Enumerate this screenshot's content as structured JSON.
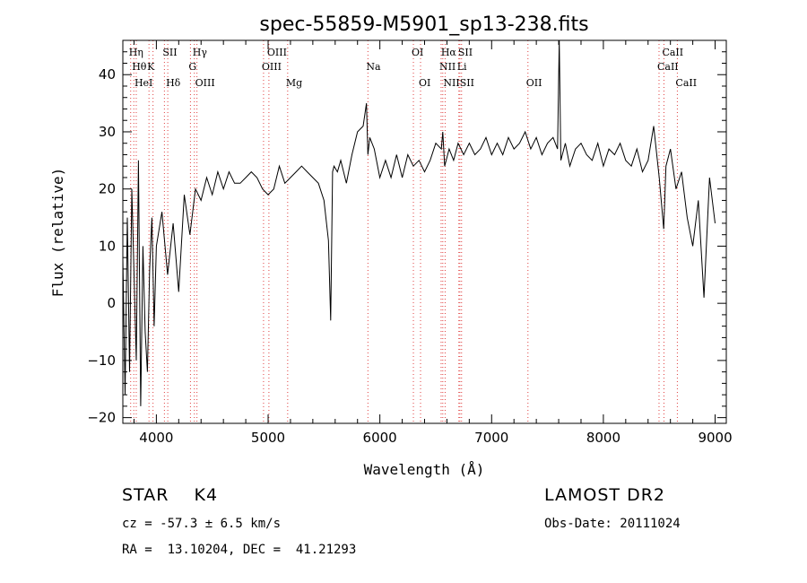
{
  "chart_data": {
    "type": "line",
    "title": "spec-55859-M5901_sp13-238.fits",
    "xlabel": "Wavelength (Å)",
    "ylabel": "Flux (relative)",
    "xlim": [
      3700,
      9100
    ],
    "ylim": [
      -21,
      46
    ],
    "x_ticks": [
      4000,
      5000,
      6000,
      7000,
      8000,
      9000
    ],
    "y_ticks": [
      -20,
      -10,
      0,
      10,
      20,
      30,
      40
    ],
    "grid": false,
    "series": [
      {
        "x": [
          3700,
          3720,
          3740,
          3760,
          3780,
          3800,
          3820,
          3840,
          3860,
          3880,
          3900,
          3920,
          3940,
          3960,
          3980,
          4000,
          4050,
          4100,
          4150,
          4200,
          4250,
          4300,
          4350,
          4400,
          4450,
          4500,
          4550,
          4600,
          4650,
          4700,
          4750,
          4800,
          4850,
          4900,
          4950,
          5000,
          5050,
          5100,
          5150,
          5200,
          5250,
          5300,
          5350,
          5400,
          5450,
          5500,
          5540,
          5560,
          5577,
          5590,
          5620,
          5650,
          5700,
          5750,
          5800,
          5850,
          5880,
          5893,
          5910,
          5950,
          6000,
          6050,
          6100,
          6150,
          6200,
          6250,
          6300,
          6350,
          6400,
          6450,
          6500,
          6550,
          6563,
          6580,
          6620,
          6660,
          6700,
          6750,
          6800,
          6850,
          6900,
          6950,
          7000,
          7050,
          7100,
          7150,
          7200,
          7250,
          7300,
          7350,
          7400,
          7450,
          7500,
          7550,
          7590,
          7605,
          7620,
          7660,
          7700,
          7750,
          7800,
          7850,
          7900,
          7950,
          8000,
          8050,
          8100,
          8150,
          8200,
          8250,
          8300,
          8350,
          8400,
          8450,
          8500,
          8540,
          8560,
          8600,
          8650,
          8700,
          8750,
          8800,
          8850,
          8900,
          8950,
          9000
        ],
        "y": [
          8,
          -16,
          15,
          -12,
          20,
          5,
          -10,
          25,
          -18,
          10,
          -5,
          -12,
          6,
          15,
          -4,
          10,
          16,
          5,
          14,
          2,
          19,
          12,
          20,
          18,
          22,
          19,
          23,
          20,
          23,
          21,
          21,
          22,
          23,
          22,
          20,
          19,
          20,
          24,
          21,
          22,
          23,
          24,
          23,
          22,
          21,
          18,
          11,
          -3,
          23,
          24,
          23,
          25,
          21,
          26,
          30,
          31,
          35,
          26,
          29,
          27,
          22,
          25,
          22,
          26,
          22,
          26,
          24,
          25,
          23,
          25,
          28,
          27,
          30,
          24,
          27,
          25,
          28,
          26,
          28,
          26,
          27,
          29,
          26,
          28,
          26,
          29,
          27,
          28,
          30,
          27,
          29,
          26,
          28,
          29,
          27,
          46,
          25,
          28,
          24,
          27,
          28,
          26,
          25,
          28,
          24,
          27,
          26,
          28,
          25,
          24,
          27,
          23,
          25,
          31,
          22,
          13,
          24,
          27,
          20,
          23,
          15,
          10,
          18,
          1,
          22,
          14
        ]
      }
    ],
    "spectral_lines": [
      {
        "wave": 3770,
        "label": "Hη",
        "row": 0
      },
      {
        "wave": 3798,
        "label": "Hθ",
        "row": 1
      },
      {
        "wave": 3820,
        "label": "HeI",
        "row": 2
      },
      {
        "wave": 3934,
        "label": "K",
        "row": 1
      },
      {
        "wave": 3970,
        "label": "",
        "row": -1
      },
      {
        "wave": 4072,
        "label": "SII",
        "row": 0
      },
      {
        "wave": 4102,
        "label": "Hδ",
        "row": 2
      },
      {
        "wave": 4305,
        "label": "G",
        "row": 1
      },
      {
        "wave": 4340,
        "label": "Hγ",
        "row": 0
      },
      {
        "wave": 4363,
        "label": "OIII",
        "row": 2
      },
      {
        "wave": 4959,
        "label": "OIII",
        "row": 1
      },
      {
        "wave": 5007,
        "label": "OIII",
        "row": 0
      },
      {
        "wave": 5175,
        "label": "Mg",
        "row": 2
      },
      {
        "wave": 5893,
        "label": "Na",
        "row": 1
      },
      {
        "wave": 6300,
        "label": "OI",
        "row": 0
      },
      {
        "wave": 6364,
        "label": "OI",
        "row": 2
      },
      {
        "wave": 6548,
        "label": "NII",
        "row": 1
      },
      {
        "wave": 6563,
        "label": "Hα",
        "row": 0
      },
      {
        "wave": 6584,
        "label": "NII",
        "row": 2
      },
      {
        "wave": 6707,
        "label": "Li",
        "row": 1
      },
      {
        "wave": 6716,
        "label": "SII",
        "row": 0
      },
      {
        "wave": 6731,
        "label": "SII",
        "row": 2
      },
      {
        "wave": 7325,
        "label": "OII",
        "row": 2
      },
      {
        "wave": 8498,
        "label": "CaII",
        "row": 1
      },
      {
        "wave": 8542,
        "label": "CaII",
        "row": 0
      },
      {
        "wave": 8662,
        "label": "CaII",
        "row": 2
      }
    ]
  },
  "info": {
    "class": "STAR    K4",
    "survey": "LAMOST DR2",
    "cz": "cz = -57.3 ± 6.5 km/s",
    "obs_date": "Obs-Date: 20111024",
    "coords": "RA =  13.10204, DEC =  41.21293"
  },
  "colors": {
    "line_markers": "#e04040",
    "spectrum": "#000000"
  }
}
